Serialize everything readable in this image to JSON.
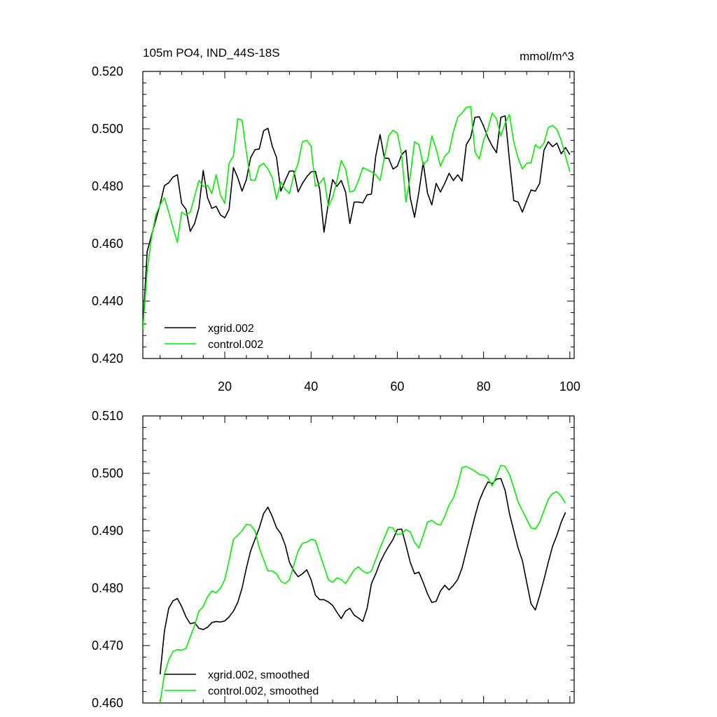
{
  "chart_data": [
    {
      "type": "line",
      "title": "105m PO4, IND_44S-18S",
      "units": "mmol/m^3",
      "xlim": [
        1,
        101
      ],
      "ylim": [
        0.42,
        0.52
      ],
      "x_ticks": [
        20,
        40,
        60,
        80,
        100
      ],
      "y_ticks": [
        "0.420",
        "0.440",
        "0.460",
        "0.480",
        "0.500",
        "0.520"
      ],
      "grid": false,
      "legend_position": "bottom-left",
      "series": [
        {
          "name": "xgrid.002",
          "color": "#000000",
          "x_start": 1,
          "values": [
            0.4305,
            0.4572,
            0.4629,
            0.4682,
            0.4737,
            0.4802,
            0.4812,
            0.4832,
            0.484,
            0.474,
            0.472,
            0.4643,
            0.467,
            0.4725,
            0.4855,
            0.476,
            0.4723,
            0.473,
            0.47,
            0.469,
            0.472,
            0.4865,
            0.483,
            0.4783,
            0.4823,
            0.49,
            0.4927,
            0.493,
            0.4993,
            0.5002,
            0.494,
            0.49,
            0.4783,
            0.482,
            0.4853,
            0.4853,
            0.478,
            0.481,
            0.4833,
            0.485,
            0.4852,
            0.479,
            0.464,
            0.474,
            0.4823,
            0.48,
            0.482,
            0.478,
            0.467,
            0.4745,
            0.4745,
            0.4742,
            0.477,
            0.4773,
            0.4905,
            0.498,
            0.4898,
            0.4897,
            0.486,
            0.487,
            0.491,
            0.4925,
            0.476,
            0.4692,
            0.478,
            0.4883,
            0.4776,
            0.4735,
            0.481,
            0.478,
            0.481,
            0.4845,
            0.482,
            0.484,
            0.4818,
            0.4945,
            0.497,
            0.504,
            0.5042,
            0.501,
            0.497,
            0.494,
            0.4917,
            0.504,
            0.5045,
            0.489,
            0.475,
            0.4745,
            0.471,
            0.475,
            0.4787,
            0.4783,
            0.481,
            0.4925,
            0.4955,
            0.4938,
            0.495,
            0.4913,
            0.4935,
            0.491
          ]
        },
        {
          "name": "control.002",
          "color": "#00ee00",
          "x_start": 1,
          "values": [
            0.43,
            0.4505,
            0.462,
            0.47,
            0.4735,
            0.476,
            0.471,
            0.4655,
            0.4605,
            0.471,
            0.47,
            0.471,
            0.4765,
            0.482,
            0.48,
            0.4803,
            0.4775,
            0.484,
            0.477,
            0.474,
            0.488,
            0.4905,
            0.5035,
            0.503,
            0.492,
            0.4822,
            0.482,
            0.487,
            0.488,
            0.486,
            0.483,
            0.4755,
            0.4815,
            0.479,
            0.4775,
            0.484,
            0.488,
            0.4955,
            0.496,
            0.494,
            0.48,
            0.481,
            0.483,
            0.473,
            0.476,
            0.482,
            0.489,
            0.486,
            0.478,
            0.4785,
            0.482,
            0.4865,
            0.4858,
            0.485,
            0.484,
            0.482,
            0.49,
            0.4975,
            0.4995,
            0.4985,
            0.491,
            0.4745,
            0.4835,
            0.4955,
            0.4945,
            0.4875,
            0.489,
            0.4975,
            0.493,
            0.487,
            0.4905,
            0.492,
            0.499,
            0.504,
            0.5055,
            0.5075,
            0.5078,
            0.492,
            0.4895,
            0.496,
            0.5,
            0.5055,
            0.5035,
            0.4975,
            0.502,
            0.505,
            0.4955,
            0.4898,
            0.486,
            0.488,
            0.4882,
            0.4945,
            0.4932,
            0.495,
            0.5005,
            0.5012,
            0.4998,
            0.496,
            0.4905,
            0.485
          ]
        }
      ]
    },
    {
      "type": "line",
      "title": "",
      "xlim": [
        1,
        101
      ],
      "ylim": [
        0.46,
        0.51
      ],
      "y_ticks": [
        "0.460",
        "0.470",
        "0.480",
        "0.490",
        "0.500",
        "0.510"
      ],
      "grid": false,
      "legend_position": "bottom-left",
      "series": [
        {
          "name": "xgrid.002, smoothed",
          "color": "#000000",
          "x_start": 5,
          "values": [
            0.465,
            0.4725,
            0.4765,
            0.4778,
            0.4782,
            0.4768,
            0.475,
            0.4738,
            0.474,
            0.473,
            0.4728,
            0.4732,
            0.474,
            0.4742,
            0.4741,
            0.4743,
            0.475,
            0.476,
            0.4775,
            0.48,
            0.4835,
            0.4865,
            0.4885,
            0.4905,
            0.493,
            0.4941,
            0.4925,
            0.4905,
            0.4895,
            0.4875,
            0.4845,
            0.483,
            0.482,
            0.4825,
            0.4832,
            0.4815,
            0.4788,
            0.478,
            0.478,
            0.4776,
            0.477,
            0.4758,
            0.4747,
            0.476,
            0.4765,
            0.4753,
            0.4748,
            0.4742,
            0.4765,
            0.4808,
            0.4825,
            0.4845,
            0.486,
            0.4873,
            0.4885,
            0.4902,
            0.4903,
            0.4875,
            0.4845,
            0.4825,
            0.4828,
            0.481,
            0.479,
            0.4775,
            0.4777,
            0.4795,
            0.4805,
            0.4797,
            0.4805,
            0.4815,
            0.4835,
            0.4865,
            0.4895,
            0.4925,
            0.4952,
            0.497,
            0.4985,
            0.4982,
            0.499,
            0.4991,
            0.497,
            0.493,
            0.49,
            0.487,
            0.4848,
            0.481,
            0.4773,
            0.4762,
            0.4787,
            0.4815,
            0.4845,
            0.4873,
            0.4892,
            0.4915,
            0.4932
          ]
        },
        {
          "name": "control.002, smoothed",
          "color": "#00ee00",
          "x_start": 5,
          "values": [
            0.46,
            0.465,
            0.4675,
            0.469,
            0.4693,
            0.4692,
            0.4695,
            0.4715,
            0.4735,
            0.476,
            0.4768,
            0.4785,
            0.4795,
            0.4792,
            0.48,
            0.4815,
            0.4848,
            0.4885,
            0.4892,
            0.49,
            0.4911,
            0.491,
            0.49,
            0.487,
            0.485,
            0.483,
            0.483,
            0.4825,
            0.4812,
            0.4808,
            0.4815,
            0.484,
            0.4865,
            0.4878,
            0.488,
            0.4885,
            0.4883,
            0.486,
            0.4838,
            0.4815,
            0.481,
            0.4818,
            0.4815,
            0.4808,
            0.482,
            0.4832,
            0.4837,
            0.483,
            0.4826,
            0.483,
            0.485,
            0.487,
            0.4888,
            0.4906,
            0.4905,
            0.4893,
            0.4895,
            0.4902,
            0.4898,
            0.488,
            0.487,
            0.4892,
            0.4915,
            0.4918,
            0.4912,
            0.491,
            0.4925,
            0.4945,
            0.4957,
            0.498,
            0.501,
            0.5012,
            0.5008,
            0.5004,
            0.4998,
            0.4997,
            0.4992,
            0.4978,
            0.4996,
            0.5014,
            0.5012,
            0.4998,
            0.4975,
            0.495,
            0.4935,
            0.492,
            0.4905,
            0.4903,
            0.4915,
            0.4935,
            0.4955,
            0.4965,
            0.4968,
            0.496,
            0.4948
          ]
        }
      ]
    }
  ]
}
